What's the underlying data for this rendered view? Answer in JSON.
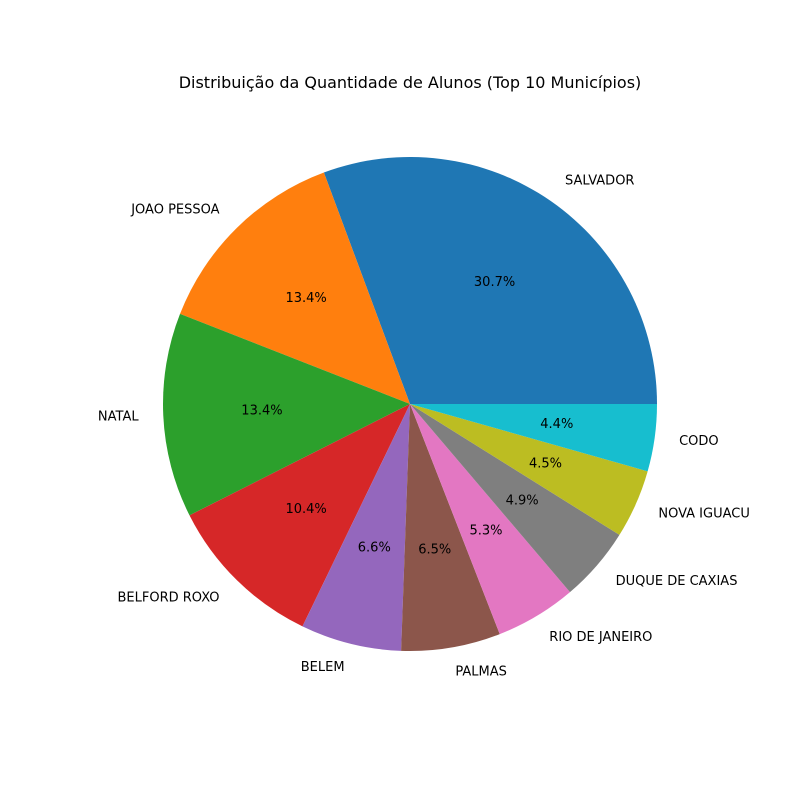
{
  "chart_data": {
    "type": "pie",
    "title": "Distribuição da Quantidade de Alunos (Top 10 Municípios)",
    "start_angle_deg": 0,
    "direction": "counterclockwise",
    "categories": [
      "SALVADOR",
      "JOAO PESSOA",
      "NATAL",
      "BELFORD ROXO",
      "BELEM",
      "PALMAS",
      "RIO DE JANEIRO",
      "DUQUE DE CAXIAS",
      "NOVA IGUACU",
      "CODO"
    ],
    "values": [
      30.7,
      13.4,
      13.4,
      10.4,
      6.6,
      6.5,
      5.3,
      4.9,
      4.5,
      4.4
    ],
    "value_labels": [
      "30.7%",
      "13.4%",
      "13.4%",
      "10.4%",
      "6.6%",
      "6.5%",
      "5.3%",
      "4.9%",
      "4.5%",
      "4.4%"
    ],
    "colors": [
      "#1f77b4",
      "#ff7f0e",
      "#2ca02c",
      "#d62728",
      "#9467bd",
      "#8c564b",
      "#e377c2",
      "#7f7f7f",
      "#bcbd22",
      "#17becf"
    ]
  }
}
